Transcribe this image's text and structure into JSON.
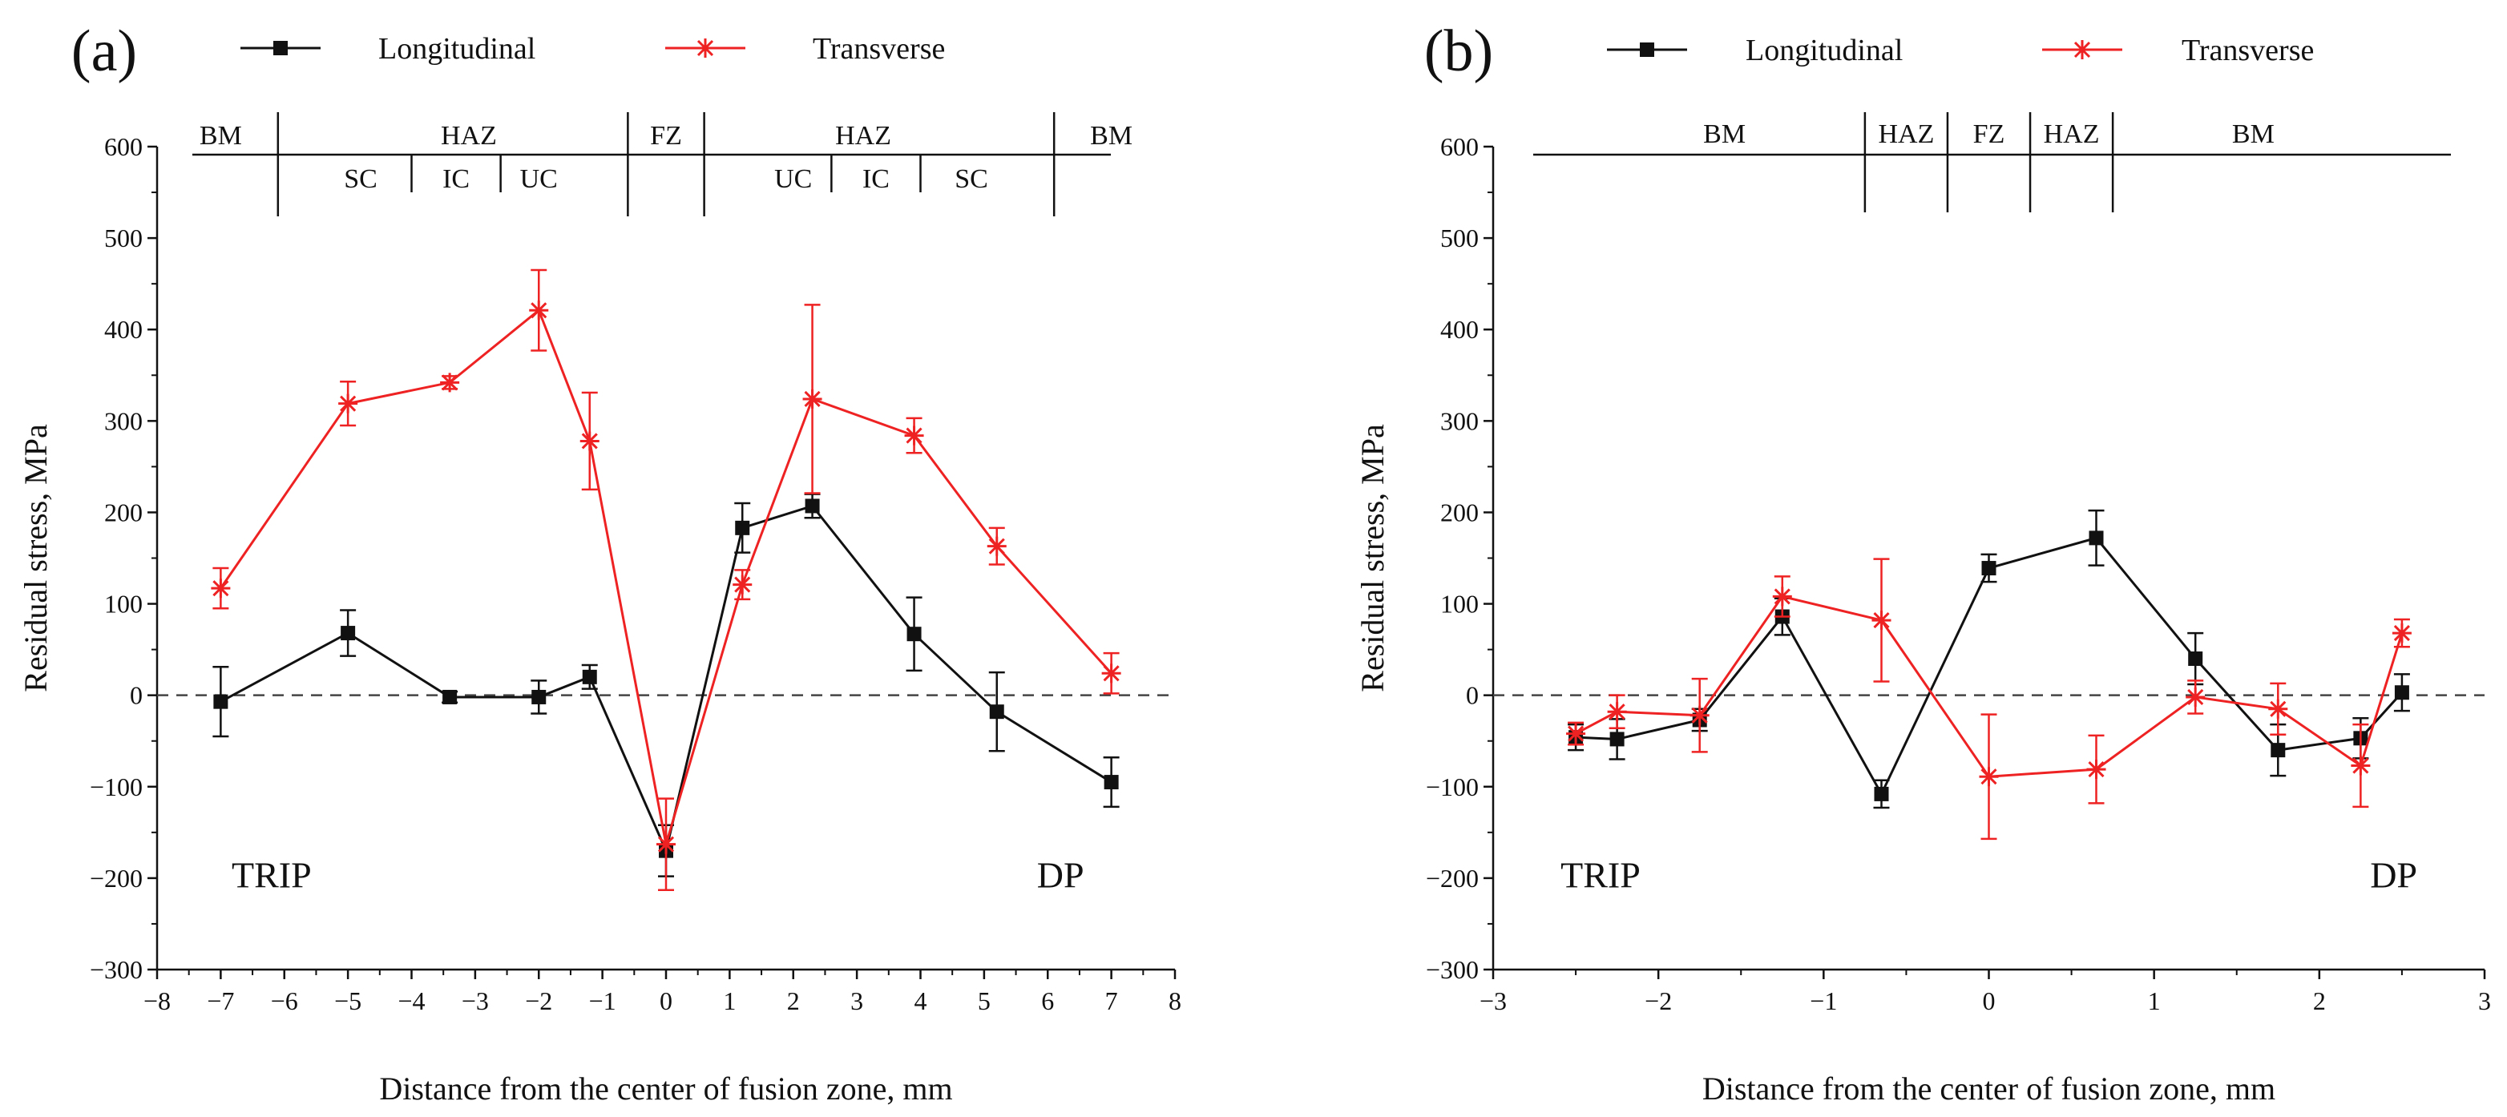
{
  "figure": {
    "panels": [
      "(a)",
      "(b)"
    ]
  },
  "chart_data": [
    {
      "panel_label": "(a)",
      "type": "line",
      "xlabel": "Distance from the center of fusion zone, mm",
      "ylabel": "Residual stress, MPa",
      "xlim": [
        -8,
        8
      ],
      "ylim": [
        -300,
        600
      ],
      "xticks": [
        "−8",
        "−7",
        "−6",
        "−5",
        "−4",
        "−3",
        "−2",
        "−1",
        "0",
        "1",
        "2",
        "3",
        "4",
        "5",
        "6",
        "7",
        "8"
      ],
      "yticks": [
        "−300",
        "−200",
        "−100",
        "0",
        "100",
        "200",
        "300",
        "400",
        "500",
        "600"
      ],
      "legend": {
        "placement": "top",
        "entries": [
          "Longitudinal",
          "Transverse"
        ]
      },
      "colors": {
        "Longitudinal": "#111111",
        "Transverse": "#ee2222"
      },
      "series": [
        {
          "name": "Longitudinal",
          "x": [
            -7,
            -5,
            -3.4,
            -2,
            -1.2,
            0,
            1.2,
            2.3,
            3.9,
            5.2,
            7
          ],
          "values": [
            -7,
            68,
            -2,
            -2,
            20,
            -170,
            183,
            207,
            67,
            -18,
            -95
          ],
          "errors": [
            38,
            25,
            6,
            18,
            13,
            28,
            27,
            13,
            40,
            43,
            27
          ]
        },
        {
          "name": "Transverse",
          "x": [
            -7,
            -5,
            -3.4,
            -2,
            -1.2,
            0,
            1.2,
            2.3,
            3.9,
            5.2,
            7
          ],
          "values": [
            117,
            319,
            342,
            421,
            278,
            -163,
            121,
            324,
            284,
            163,
            24
          ],
          "errors": [
            22,
            24,
            7,
            44,
            53,
            50,
            16,
            103,
            19,
            20,
            22
          ]
        }
      ],
      "regions": {
        "top": [
          {
            "label": "BM",
            "x": -7
          },
          {
            "label": "HAZ",
            "x": -3.1
          },
          {
            "label": "FZ",
            "x": 0
          },
          {
            "label": "HAZ",
            "x": 3.1
          },
          {
            "label": "BM",
            "x": 7
          }
        ],
        "sub": [
          {
            "label": "SC",
            "x": -4.8
          },
          {
            "label": "IC",
            "x": -3.3
          },
          {
            "label": "UC",
            "x": -2
          },
          {
            "label": "UC",
            "x": 2
          },
          {
            "label": "IC",
            "x": 3.3
          },
          {
            "label": "SC",
            "x": 4.8
          }
        ],
        "top_dividers": [
          -6.1,
          -0.6,
          0.6,
          6.1
        ],
        "sub_dividers": [
          -4,
          -2.6,
          2.6,
          4
        ]
      },
      "annotations": [
        {
          "text": "TRIP",
          "x": -6.2,
          "y": -210
        },
        {
          "text": "DP",
          "x": 6.2,
          "y": -210
        }
      ]
    },
    {
      "panel_label": "(b)",
      "type": "line",
      "xlabel": "Distance from the center of fusion zone, mm",
      "ylabel": "Residual stress, MPa",
      "xlim": [
        -3,
        3
      ],
      "ylim": [
        -300,
        600
      ],
      "xticks": [
        "−3",
        "−2",
        "−1",
        "0",
        "1",
        "2",
        "3"
      ],
      "yticks": [
        "−300",
        "−200",
        "−100",
        "0",
        "100",
        "200",
        "300",
        "400",
        "500",
        "600"
      ],
      "legend": {
        "placement": "top",
        "entries": [
          "Longitudinal",
          "Transverse"
        ]
      },
      "colors": {
        "Longitudinal": "#111111",
        "Transverse": "#ee2222"
      },
      "series": [
        {
          "name": "Longitudinal",
          "x": [
            -2.5,
            -2.25,
            -1.75,
            -1.25,
            -0.65,
            0,
            0.65,
            1.25,
            1.75,
            2.25,
            2.5
          ],
          "values": [
            -46,
            -48,
            -27,
            86,
            -108,
            139,
            172,
            40,
            -60,
            -47,
            3
          ],
          "errors": [
            14,
            22,
            12,
            20,
            15,
            15,
            30,
            28,
            28,
            22,
            20
          ]
        },
        {
          "name": "Transverse",
          "x": [
            -2.5,
            -2.25,
            -1.75,
            -1.25,
            -0.65,
            0,
            0.65,
            1.25,
            1.75,
            2.25,
            2.5
          ],
          "values": [
            -42,
            -18,
            -22,
            108,
            82,
            -89,
            -81,
            -2,
            -15,
            -77,
            68
          ],
          "errors": [
            12,
            18,
            40,
            22,
            67,
            68,
            37,
            18,
            28,
            45,
            15
          ]
        }
      ],
      "regions": {
        "top": [
          {
            "label": "BM",
            "x": -1.6
          },
          {
            "label": "HAZ",
            "x": -0.5
          },
          {
            "label": "FZ",
            "x": 0
          },
          {
            "label": "HAZ",
            "x": 0.5
          },
          {
            "label": "BM",
            "x": 1.6
          }
        ],
        "sub": [],
        "top_dividers": [
          -0.75,
          -0.25,
          0.25,
          0.75
        ],
        "sub_dividers": []
      },
      "annotations": [
        {
          "text": "TRIP",
          "x": -2.35,
          "y": -210
        },
        {
          "text": "DP",
          "x": 2.45,
          "y": -210
        }
      ]
    }
  ]
}
